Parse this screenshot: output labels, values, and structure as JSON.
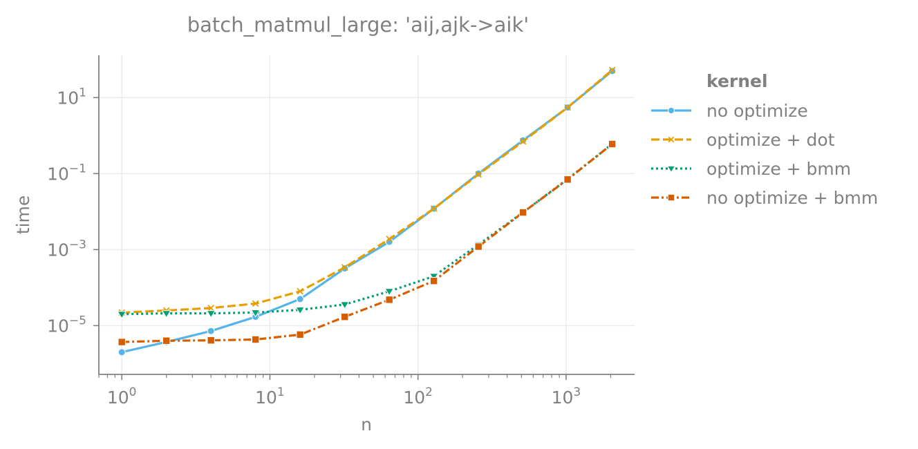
{
  "chart_data": {
    "type": "line",
    "title": "batch_matmul_large: 'aij,ajk->aik'",
    "xlabel": "n",
    "ylabel": "time",
    "xscale": "log",
    "yscale": "log",
    "xlim": [
      0.7,
      2900
    ],
    "ylim": [
      5.2e-07,
      130
    ],
    "xticks": [
      {
        "value": 1,
        "base": "10",
        "exp": "0"
      },
      {
        "value": 10,
        "base": "10",
        "exp": "1"
      },
      {
        "value": 100,
        "base": "10",
        "exp": "2"
      },
      {
        "value": 1000,
        "base": "10",
        "exp": "3"
      }
    ],
    "yticks": [
      {
        "value": 1e-05,
        "base": "10",
        "exp": "−5"
      },
      {
        "value": 0.001,
        "base": "10",
        "exp": "−3"
      },
      {
        "value": 0.1,
        "base": "10",
        "exp": "−1"
      },
      {
        "value": 10,
        "base": "10",
        "exp": "1"
      }
    ],
    "grid": true,
    "legend": {
      "title": "kernel",
      "placement": "right"
    },
    "x": [
      1,
      2,
      4,
      8,
      16,
      32,
      64,
      128,
      256,
      512,
      1024,
      2048
    ],
    "series": [
      {
        "name": "no optimize",
        "color": "#56b4e9",
        "marker": "circle",
        "dash": "solid",
        "values": [
          2e-06,
          3.7e-06,
          7.2e-06,
          1.7e-05,
          5e-05,
          0.00032,
          0.0016,
          0.012,
          0.1,
          0.75,
          5.5,
          50
        ]
      },
      {
        "name": "optimize + dot",
        "color": "#e69f00",
        "marker": "x",
        "dash": "dashed",
        "values": [
          2.2e-05,
          2.5e-05,
          2.9e-05,
          3.8e-05,
          8e-05,
          0.00034,
          0.0019,
          0.012,
          0.095,
          0.7,
          5.5,
          53
        ]
      },
      {
        "name": "optimize + bmm",
        "color": "#009e73",
        "marker": "triangle-down",
        "dash": "dotted",
        "values": [
          2e-05,
          2.1e-05,
          2.1e-05,
          2.2e-05,
          2.6e-05,
          3.6e-05,
          8e-05,
          0.0002,
          0.00135,
          0.0095,
          0.072,
          0.6
        ]
      },
      {
        "name": "no optimize + bmm",
        "color": "#d55e00",
        "marker": "square",
        "dash": "dashdot",
        "values": [
          3.7e-06,
          4e-06,
          4.1e-06,
          4.3e-06,
          5.8e-06,
          1.7e-05,
          4.8e-05,
          0.00015,
          0.0012,
          0.0095,
          0.07,
          0.6
        ]
      }
    ]
  }
}
